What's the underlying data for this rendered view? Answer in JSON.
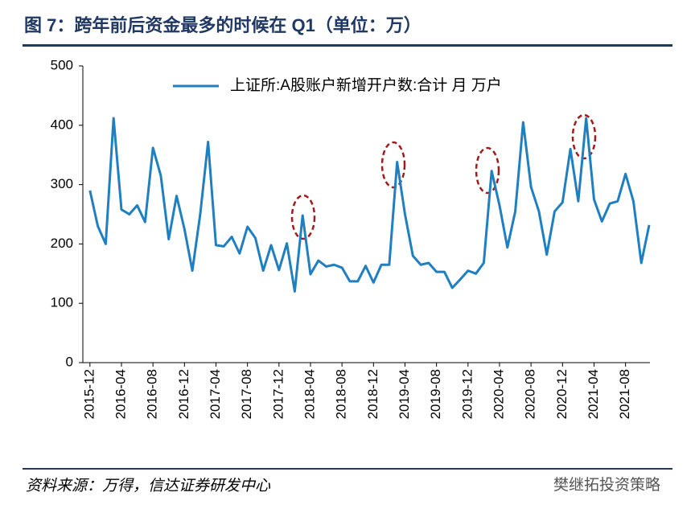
{
  "chart_data": {
    "type": "line",
    "title": "图 7：跨年前后资金最多的时候在 Q1（单位：万）",
    "source": "资料来源：万得，信达证券研发中心",
    "watermark": "樊继拓投资策略",
    "categories": [
      "2015-12",
      null,
      null,
      null,
      "2016-04",
      null,
      null,
      null,
      "2016-08",
      null,
      null,
      null,
      "2016-12",
      null,
      null,
      null,
      "2017-04",
      null,
      null,
      null,
      "2017-08",
      null,
      null,
      null,
      "2017-12",
      null,
      null,
      null,
      "2018-04",
      null,
      null,
      null,
      "2018-08",
      null,
      null,
      null,
      "2018-12",
      null,
      null,
      null,
      "2019-04",
      null,
      null,
      null,
      "2019-08",
      null,
      null,
      null,
      "2019-12",
      null,
      null,
      null,
      "2020-04",
      null,
      null,
      null,
      "2020-08",
      null,
      null,
      null,
      "2020-12",
      null,
      null,
      null,
      "2021-04",
      null,
      null,
      null,
      "2021-08",
      null,
      null,
      null
    ],
    "series": [
      {
        "name": "上证所:A股账户新增开户数:合计 月 万户",
        "color": "#1f7fc0",
        "values": [
          290,
          230,
          200,
          412,
          258,
          250,
          265,
          237,
          362,
          315,
          208,
          281,
          225,
          155,
          250,
          372,
          198,
          196,
          212,
          184,
          229,
          210,
          155,
          198,
          156,
          201,
          120,
          248,
          149,
          172,
          162,
          165,
          160,
          137,
          137,
          163,
          135,
          165,
          165,
          338,
          250,
          180,
          165,
          168,
          153,
          153,
          126,
          140,
          155,
          150,
          168,
          323,
          265,
          194,
          255,
          405,
          296,
          255,
          182,
          255,
          270,
          360,
          272,
          412,
          275,
          238,
          268,
          272,
          318,
          272,
          168,
          232
        ]
      }
    ],
    "ylim": [
      0,
      500
    ],
    "yticks": [
      0,
      100,
      200,
      300,
      400,
      500
    ],
    "legend": "top"
  }
}
